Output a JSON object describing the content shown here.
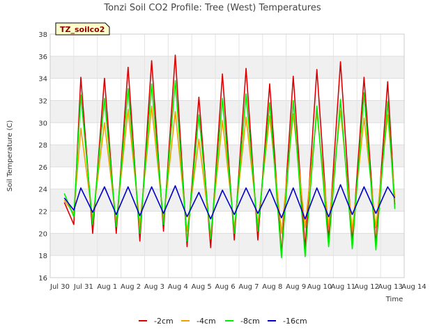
{
  "chart_data": {
    "type": "line",
    "title": "Tonzi Soil CO2 Profile: Tree (West) Temperatures",
    "xlabel": "Time",
    "ylabel": "Soil Temperature (C)",
    "ylim": [
      16,
      38
    ],
    "yticks": [
      16,
      18,
      20,
      22,
      24,
      26,
      28,
      30,
      32,
      34,
      36,
      38
    ],
    "xlim": [
      0,
      15
    ],
    "xticks": [
      {
        "pos": 0,
        "label": "Jul 30"
      },
      {
        "pos": 1,
        "label": "Jul 31"
      },
      {
        "pos": 2,
        "label": "Aug 1"
      },
      {
        "pos": 3,
        "label": "Aug 2"
      },
      {
        "pos": 4,
        "label": "Aug 3"
      },
      {
        "pos": 5,
        "label": "Aug 4"
      },
      {
        "pos": 6,
        "label": "Aug 5"
      },
      {
        "pos": 7,
        "label": "Aug 6"
      },
      {
        "pos": 8,
        "label": "Aug 7"
      },
      {
        "pos": 9,
        "label": "Aug 8"
      },
      {
        "pos": 10,
        "label": "Aug 9"
      },
      {
        "pos": 11,
        "label": "Aug 10"
      },
      {
        "pos": 12,
        "label": "Aug 11"
      },
      {
        "pos": 13,
        "label": "Aug 12"
      },
      {
        "pos": 14,
        "label": "Aug 13"
      },
      {
        "pos": 15,
        "label": "Aug 14"
      }
    ],
    "grid": true,
    "legend_position": "bottom",
    "annotation": "TZ_soilco2",
    "series": [
      {
        "name": "-2cm",
        "color": "#dd0000",
        "x": [
          0.6,
          1.0,
          1.3,
          1.8,
          2.3,
          2.8,
          3.3,
          3.8,
          4.3,
          4.8,
          5.3,
          5.8,
          6.3,
          6.8,
          7.3,
          7.8,
          8.3,
          8.8,
          9.3,
          9.8,
          10.3,
          10.8,
          11.3,
          11.8,
          12.3,
          12.8,
          13.3,
          13.8,
          14.3,
          14.6
        ],
        "y": [
          22.8,
          20.8,
          34.1,
          20.0,
          34.0,
          20.0,
          35.0,
          19.3,
          35.6,
          20.2,
          36.1,
          18.8,
          32.3,
          18.7,
          34.4,
          19.4,
          34.9,
          19.4,
          33.5,
          18.1,
          34.2,
          18.6,
          34.8,
          19.4,
          35.5,
          19.2,
          34.1,
          19.0,
          33.7,
          22.6
        ]
      },
      {
        "name": "-4cm",
        "color": "#f0a000",
        "x": [
          0.6,
          1.0,
          1.3,
          1.8,
          2.3,
          2.8,
          3.3,
          3.8,
          4.3,
          4.8,
          5.3,
          5.8,
          6.3,
          6.8,
          7.3,
          7.8,
          8.3,
          8.8,
          9.3,
          9.8,
          10.3,
          10.8,
          11.3,
          11.8,
          12.3,
          12.8,
          13.3,
          13.8,
          14.3,
          14.6
        ],
        "y": [
          23.0,
          21.8,
          29.5,
          21.3,
          30.0,
          21.0,
          31.2,
          20.8,
          31.5,
          21.2,
          31.0,
          20.2,
          28.5,
          19.8,
          30.2,
          20.5,
          30.5,
          20.8,
          30.6,
          20.0,
          30.8,
          20.5,
          30.9,
          20.6,
          31.1,
          20.3,
          30.4,
          20.5,
          30.7,
          23.3
        ]
      },
      {
        "name": "-8cm",
        "color": "#00ee00",
        "x": [
          0.6,
          1.0,
          1.3,
          1.8,
          2.3,
          2.8,
          3.3,
          3.8,
          4.3,
          4.8,
          5.3,
          5.8,
          6.3,
          6.8,
          7.3,
          7.8,
          8.3,
          8.8,
          9.3,
          9.8,
          10.3,
          10.8,
          11.3,
          11.8,
          12.3,
          12.8,
          13.3,
          13.8,
          14.3,
          14.6
        ],
        "y": [
          23.6,
          21.5,
          32.5,
          20.8,
          32.2,
          20.6,
          33.1,
          20.0,
          33.5,
          20.8,
          33.8,
          19.3,
          30.7,
          19.5,
          32.2,
          20.0,
          32.6,
          20.2,
          31.8,
          17.8,
          32.0,
          17.9,
          31.5,
          18.8,
          32.1,
          18.6,
          32.7,
          18.5,
          31.9,
          22.2
        ]
      },
      {
        "name": "-16cm",
        "color": "#0000cc",
        "x": [
          0.6,
          1.0,
          1.3,
          1.8,
          2.3,
          2.8,
          3.3,
          3.8,
          4.3,
          4.8,
          5.3,
          5.8,
          6.3,
          6.8,
          7.3,
          7.8,
          8.3,
          8.8,
          9.3,
          9.8,
          10.3,
          10.8,
          11.3,
          11.8,
          12.3,
          12.8,
          13.3,
          13.8,
          14.3,
          14.6
        ],
        "y": [
          23.2,
          22.1,
          24.1,
          21.9,
          24.2,
          21.7,
          24.2,
          21.6,
          24.2,
          21.8,
          24.3,
          21.5,
          23.7,
          21.3,
          23.9,
          21.7,
          24.1,
          21.8,
          24.0,
          21.4,
          24.1,
          21.3,
          24.1,
          21.5,
          24.4,
          21.7,
          24.2,
          21.8,
          24.2,
          23.2
        ]
      }
    ]
  }
}
